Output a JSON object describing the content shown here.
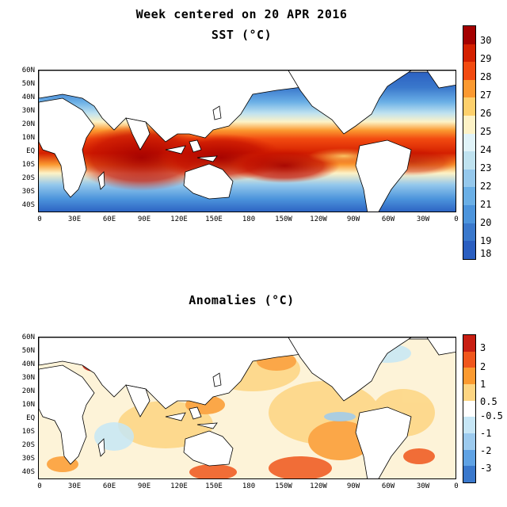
{
  "title": "Week centered on 20 APR 2016",
  "sst_panel": {
    "title": "SST (°C)",
    "lat_labels": [
      "60N",
      "50N",
      "40N",
      "30N",
      "20N",
      "10N",
      "EQ",
      "10S",
      "20S",
      "30S",
      "40S"
    ],
    "lon_labels": [
      "0",
      "30E",
      "60E",
      "90E",
      "120E",
      "150E",
      "180",
      "150W",
      "120W",
      "90W",
      "60W",
      "30W",
      "0"
    ],
    "colorbar": {
      "labels": [
        "30",
        "29",
        "28",
        "27",
        "26",
        "25",
        "24",
        "23",
        "22",
        "21",
        "20",
        "19",
        "18"
      ],
      "colors": [
        "#a40000",
        "#d42000",
        "#f24a10",
        "#fb9930",
        "#fdd06c",
        "#fdf2c6",
        "#e0f3f8",
        "#bfe2ef",
        "#95c8ec",
        "#6aafe6",
        "#4c94dc",
        "#3a78cc",
        "#2a5ec0"
      ]
    }
  },
  "anomaly_panel": {
    "title": "Anomalies (°C)",
    "lat_labels": [
      "60N",
      "50N",
      "40N",
      "30N",
      "20N",
      "10N",
      "EQ",
      "10S",
      "20S",
      "30S",
      "40S"
    ],
    "lon_labels": [
      "0",
      "30E",
      "60E",
      "90E",
      "120E",
      "150E",
      "180",
      "150W",
      "120W",
      "90W",
      "60W",
      "30W",
      "0"
    ],
    "colorbar": {
      "labels": [
        "3",
        "2",
        "1",
        "0.5",
        "-0.5",
        "-1",
        "-2",
        "-3"
      ],
      "colors": [
        "#c81e12",
        "#f0561c",
        "#fb9a30",
        "#fdd582",
        "#ffffff",
        "#c6e6f6",
        "#9ccaee",
        "#5fa2e4",
        "#3a78cc"
      ]
    }
  }
}
